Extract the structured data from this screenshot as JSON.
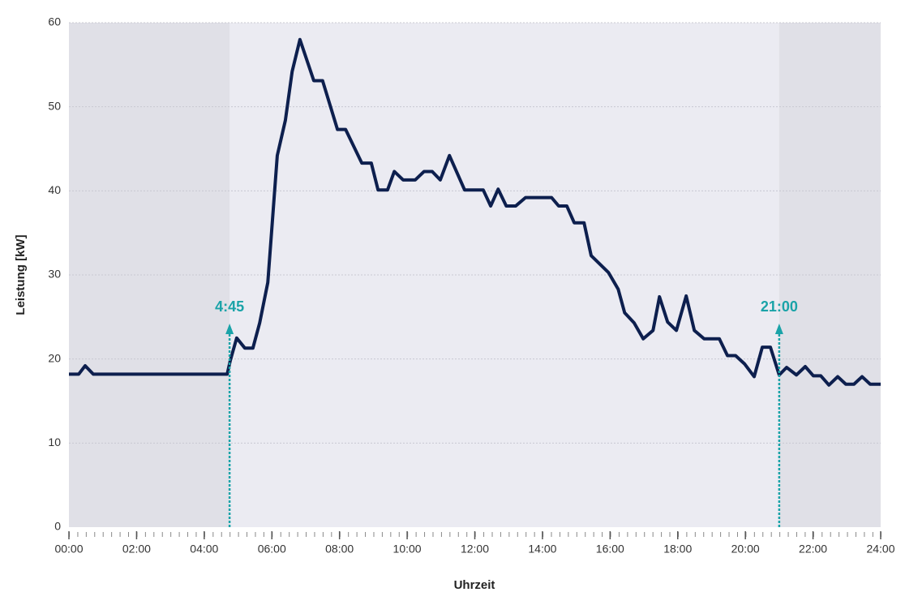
{
  "chart_data": {
    "type": "line",
    "x_label": "Uhrzeit",
    "y_label": "Leistung [kW]",
    "x": [
      0,
      0.29,
      0.48,
      0.72,
      4.68,
      4.77,
      4.96,
      5.2,
      5.44,
      5.64,
      5.88,
      6.16,
      6.4,
      6.6,
      6.83,
      7.24,
      7.5,
      7.94,
      8.18,
      8.66,
      8.94,
      9.14,
      9.42,
      9.62,
      9.88,
      10.24,
      10.5,
      10.74,
      10.98,
      11.25,
      11.7,
      12.25,
      12.47,
      12.69,
      12.93,
      13.21,
      13.5,
      14.27,
      14.48,
      14.72,
      14.94,
      15.23,
      15.44,
      15.95,
      16.24,
      16.43,
      16.71,
      16.98,
      17.27,
      17.46,
      17.7,
      17.96,
      18.25,
      18.49,
      18.78,
      19.23,
      19.47,
      19.71,
      19.98,
      20.26,
      20.5,
      20.74,
      21,
      21.22,
      21.51,
      21.77,
      22.01,
      22.23,
      22.47,
      22.73,
      22.97,
      23.21,
      23.45,
      23.69,
      24
    ],
    "series": [
      {
        "color": "#0d1f4e",
        "values": [
          18.2,
          18.2,
          19.2,
          18.2,
          18.2,
          19.8,
          22.5,
          21.3,
          21.3,
          24.3,
          29.1,
          44.2,
          48.4,
          54.2,
          58,
          53.1,
          53.1,
          47.3,
          47.3,
          43.3,
          43.3,
          40.1,
          40.1,
          42.3,
          41.3,
          41.3,
          42.3,
          42.3,
          41.3,
          44.2,
          40.1,
          40.1,
          38.2,
          40.2,
          38.2,
          38.2,
          39.2,
          39.2,
          38.2,
          38.2,
          36.2,
          36.2,
          32.3,
          30.3,
          28.3,
          25.5,
          24.3,
          22.4,
          23.4,
          27.4,
          24.4,
          23.4,
          27.5,
          23.4,
          22.4,
          22.4,
          20.4,
          20.4,
          19.4,
          17.9,
          21.4,
          21.4,
          18.1,
          19.0,
          18.1,
          19.1,
          18,
          18,
          16.9,
          17.9,
          17,
          17,
          17.9,
          17,
          17
        ]
      }
    ],
    "xlim": [
      0,
      24
    ],
    "xticks": [
      {
        "value": 0,
        "label": "00:00"
      },
      {
        "value": 2,
        "label": "02:00"
      },
      {
        "value": 4,
        "label": "04:00"
      },
      {
        "value": 6,
        "label": "06:00"
      },
      {
        "value": 8,
        "label": "08:00"
      },
      {
        "value": 10,
        "label": "10:00"
      },
      {
        "value": 12,
        "label": "12:00"
      },
      {
        "value": 14,
        "label": "14:00"
      },
      {
        "value": 16,
        "label": "16:00"
      },
      {
        "value": 18,
        "label": "18:00"
      },
      {
        "value": 20,
        "label": "20:00"
      },
      {
        "value": 22,
        "label": "22:00"
      },
      {
        "value": 24,
        "label": "24:00"
      }
    ],
    "ylim": [
      0,
      60
    ],
    "yticks": [
      0,
      10,
      20,
      30,
      40,
      50,
      60
    ],
    "grid": true,
    "annotations": [
      {
        "x": 4.75,
        "label": "4:45",
        "color": "#1aa3a8"
      },
      {
        "x": 21,
        "label": "21:00",
        "color": "#1aa3a8"
      }
    ]
  }
}
